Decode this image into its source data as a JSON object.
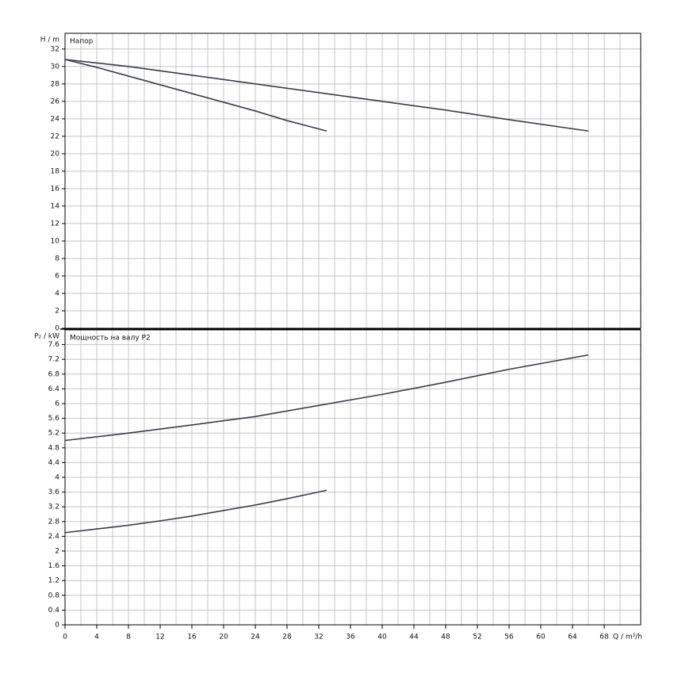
{
  "chart_data": [
    {
      "type": "line",
      "title": "Напор",
      "ylabel": "H / m",
      "xlim": [
        0,
        72.6
      ],
      "ylim": [
        0,
        33.8
      ],
      "xticks": [
        0,
        4,
        8,
        12,
        16,
        20,
        24,
        28,
        32,
        36,
        40,
        44,
        48,
        52,
        56,
        60,
        64,
        68
      ],
      "xminor": [
        2,
        6,
        10,
        14,
        18,
        22,
        26,
        30,
        34,
        38,
        42,
        46,
        50,
        54,
        58,
        62,
        66,
        70
      ],
      "yticks": [
        0,
        2,
        4,
        6,
        8,
        10,
        12,
        14,
        16,
        18,
        20,
        22,
        24,
        26,
        28,
        30,
        32
      ],
      "grid": true,
      "series": [
        {
          "color": "#3a3d45",
          "x": [
            0,
            4,
            8,
            12,
            16,
            20,
            24,
            28,
            33
          ],
          "values": [
            30.8,
            29.9,
            28.9,
            27.9,
            26.9,
            25.9,
            24.9,
            23.8,
            22.6
          ]
        },
        {
          "color": "#3a3d45",
          "x": [
            0,
            8,
            16,
            24,
            32,
            40,
            48,
            56,
            66
          ],
          "values": [
            30.8,
            30.0,
            29.0,
            28.0,
            27.0,
            26.0,
            25.0,
            23.9,
            22.6
          ]
        }
      ]
    },
    {
      "type": "line",
      "title": "Мощность на валу P2",
      "ylabel": "P₂ / kW",
      "xlabel": "Q / m³/h",
      "xlim": [
        0,
        72.6
      ],
      "ylim": [
        0,
        8.0
      ],
      "xticks": [
        0,
        4,
        8,
        12,
        16,
        20,
        24,
        28,
        32,
        36,
        40,
        44,
        48,
        52,
        56,
        60,
        64,
        68
      ],
      "xminor": [
        2,
        6,
        10,
        14,
        18,
        22,
        26,
        30,
        34,
        38,
        42,
        46,
        50,
        54,
        58,
        62,
        66,
        70
      ],
      "yticks": [
        0,
        0.4,
        0.8,
        1.2,
        1.6,
        2,
        2.4,
        2.8,
        3.2,
        3.6,
        4,
        4.4,
        4.8,
        5.2,
        5.6,
        6,
        6.4,
        6.8,
        7.2,
        7.6
      ],
      "grid": true,
      "series": [
        {
          "color": "#3a3d45",
          "x": [
            0,
            8,
            16,
            24,
            32,
            40,
            48,
            56,
            66
          ],
          "values": [
            5.0,
            5.2,
            5.42,
            5.65,
            5.95,
            6.25,
            6.58,
            6.93,
            7.32
          ]
        },
        {
          "color": "#3a3d45",
          "x": [
            0,
            4,
            8,
            12,
            16,
            20,
            24,
            28,
            33
          ],
          "values": [
            2.5,
            2.6,
            2.7,
            2.82,
            2.95,
            3.1,
            3.25,
            3.42,
            3.65
          ]
        }
      ]
    }
  ]
}
